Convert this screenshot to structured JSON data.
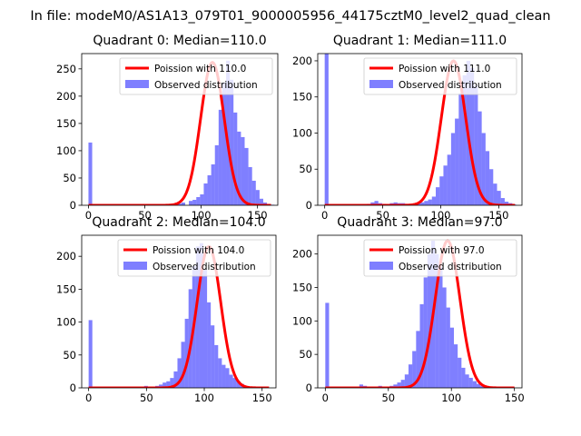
{
  "suptitle": "In file: modeM0/AS1A13_079T01_9000005956_44175cztM0_level2_quad_clean",
  "colors": {
    "hist": "#0000ff",
    "hist_opacity": 0.5,
    "fit": "#ff0000",
    "axis": "#000000"
  },
  "chart_data": [
    {
      "type": "bar",
      "title": "Quadrant 0: Median=110.0",
      "xlim": [
        -6,
        168
      ],
      "ylim": [
        0,
        278
      ],
      "xticks": [
        0,
        50,
        100,
        150
      ],
      "yticks": [
        0,
        50,
        100,
        150,
        200,
        250
      ],
      "bin_start": 0,
      "bin_width": 3.3,
      "counts": [
        115,
        0,
        0,
        0,
        0,
        0,
        0,
        0,
        0,
        0,
        0,
        0,
        0,
        0,
        0,
        0,
        0,
        0,
        0,
        0,
        0,
        0,
        0,
        0,
        3,
        5,
        0,
        8,
        10,
        15,
        20,
        40,
        55,
        75,
        110,
        175,
        225,
        265,
        230,
        170,
        135,
        125,
        105,
        70,
        45,
        28,
        12,
        5,
        2,
        1
      ],
      "fit_label": "Poission with 110.0",
      "hist_label": "Observed distribution",
      "fit": {
        "mu": 110.0,
        "peak": 262,
        "sigma": 10.5
      }
    },
    {
      "type": "bar",
      "title": "Quadrant 1: Median=111.0",
      "xlim": [
        -6,
        170
      ],
      "ylim": [
        0,
        210
      ],
      "xticks": [
        0,
        50,
        100,
        150
      ],
      "yticks": [
        0,
        50,
        100,
        150,
        200
      ],
      "bin_start": 0,
      "bin_width": 3.3,
      "counts": [
        215,
        0,
        0,
        0,
        0,
        0,
        0,
        0,
        0,
        0,
        0,
        2,
        4,
        6,
        3,
        2,
        0,
        3,
        4,
        3,
        3,
        2,
        1,
        1,
        3,
        4,
        6,
        8,
        12,
        25,
        40,
        55,
        70,
        100,
        120,
        155,
        180,
        200,
        190,
        165,
        130,
        100,
        75,
        50,
        30,
        20,
        10,
        5,
        3,
        1
      ],
      "fit_label": "Poission with 111.0",
      "hist_label": "Observed distribution",
      "fit": {
        "mu": 111.0,
        "peak": 200,
        "sigma": 10.5
      }
    },
    {
      "type": "bar",
      "title": "Quadrant 2: Median=104.0",
      "xlim": [
        -6,
        162
      ],
      "ylim": [
        0,
        232
      ],
      "xticks": [
        0,
        50,
        100,
        150
      ],
      "yticks": [
        0,
        50,
        100,
        150,
        200
      ],
      "bin_start": 0,
      "bin_width": 3.2,
      "counts": [
        103,
        0,
        0,
        0,
        0,
        0,
        0,
        0,
        0,
        0,
        0,
        1,
        2,
        1,
        2,
        3,
        1,
        2,
        3,
        5,
        8,
        10,
        15,
        25,
        45,
        70,
        105,
        150,
        185,
        215,
        220,
        180,
        130,
        95,
        65,
        45,
        35,
        30,
        20,
        15,
        10,
        6,
        3,
        1,
        0,
        0,
        0,
        0,
        0,
        0
      ],
      "fit_label": "Poission with 104.0",
      "hist_label": "Observed distribution",
      "fit": {
        "mu": 104.0,
        "peak": 215,
        "sigma": 10.2
      }
    },
    {
      "type": "bar",
      "title": "Quadrant 3: Median=97.0",
      "xlim": [
        -6,
        156
      ],
      "ylim": [
        0,
        228
      ],
      "xticks": [
        0,
        50,
        100,
        150
      ],
      "yticks": [
        0,
        50,
        100,
        150,
        200
      ],
      "bin_start": 0,
      "bin_width": 3.0,
      "counts": [
        127,
        0,
        0,
        0,
        0,
        0,
        0,
        0,
        0,
        5,
        3,
        0,
        2,
        2,
        3,
        2,
        2,
        3,
        5,
        8,
        12,
        20,
        35,
        55,
        85,
        125,
        165,
        200,
        220,
        200,
        180,
        150,
        120,
        90,
        65,
        45,
        30,
        20,
        15,
        10,
        6,
        3,
        2,
        1,
        0,
        0,
        0,
        0,
        0,
        0
      ],
      "fit_label": "Poission with 97.0",
      "hist_label": "Observed distribution",
      "fit": {
        "mu": 97.0,
        "peak": 220,
        "sigma": 9.8
      }
    }
  ]
}
